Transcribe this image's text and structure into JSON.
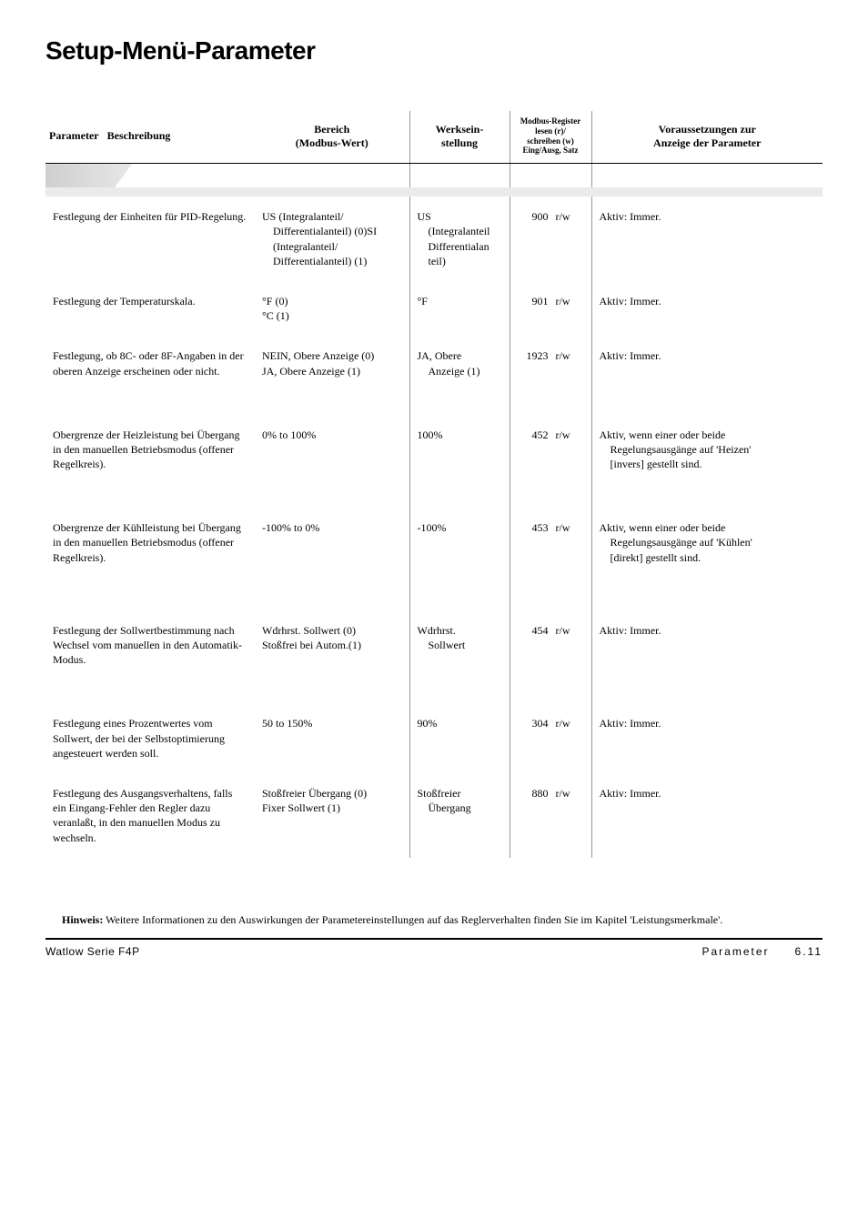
{
  "title": "Setup-Menü-Parameter",
  "columns": {
    "param": "Parameter",
    "desc": "Beschreibung",
    "range": "Bereich",
    "range_sub": "(Modbus-Wert)",
    "default": "Werksein-\nstellung",
    "reg_line1": "Modbus-Register",
    "reg_line2": "lesen (r)/",
    "reg_line3": "schreiben (w)",
    "reg_line4": "Eing/Ausg, Satz",
    "req": "Voraussetzungen zur",
    "req_sub": "Anzeige der Parameter"
  },
  "rows": [
    {
      "desc": "Festlegung der Einheiten für PID-Regelung.",
      "range": "US (Integralanteil/\n Differentialanteil) (0)SI\n (Integralanteil/\n Differentialanteil) (1)",
      "default": "US\n (Integralanteil\n Differentialan\n teil)",
      "reg_num": "900",
      "reg_rw": "r/w",
      "req": "Aktiv: Immer."
    },
    {
      "desc": "Festlegung der Temperaturskala.",
      "range": "°F (0)\n°C (1)",
      "default": "°F",
      "reg_num": "901",
      "reg_rw": "r/w",
      "req": "Aktiv: Immer."
    },
    {
      "desc": "Festlegung, ob 8C- oder 8F-Angaben in der oberen Anzeige erscheinen oder nicht.",
      "range": "NEIN, Obere Anzeige (0)\nJA, Obere Anzeige (1)",
      "default": "JA, Obere\n Anzeige (1)",
      "reg_num": "1923",
      "reg_rw": "r/w",
      "req": "Aktiv: Immer."
    },
    {
      "desc": "Obergrenze der Heizleistung bei Übergang in den manuellen Betriebsmodus (offener Regelkreis).",
      "range": "0% to 100%",
      "default": "100%",
      "reg_num": "452",
      "reg_rw": "r/w",
      "req": "Aktiv, wenn einer oder beide\n Regelungsausgänge auf 'Heizen'\n [invers] gestellt sind."
    },
    {
      "desc": "Obergrenze der Kühlleistung bei Übergang in den manuellen Betriebsmodus (offener Regelkreis).",
      "range": "-100% to 0%",
      "default": "-100%",
      "reg_num": "453",
      "reg_rw": "r/w",
      "req": "Aktiv, wenn einer oder beide\n Regelungsausgänge auf 'Kühlen'\n [direkt] gestellt sind."
    },
    {
      "desc": "Festlegung der Sollwertbestimmung nach Wechsel vom manuellen in den Automatik-Modus.",
      "range": "Wdrhrst. Sollwert (0)\nStoßfrei bei Autom.(1)",
      "default": "Wdrhrst.\n Sollwert",
      "reg_num": "454",
      "reg_rw": "r/w",
      "req": "Aktiv: Immer."
    },
    {
      "desc": "Festlegung eines Prozentwertes vom Sollwert, der bei der Selbstoptimierung angesteuert werden soll.",
      "range": "50 to 150%",
      "default": "90%",
      "reg_num": "304",
      "reg_rw": "r/w",
      "req": "Aktiv: Immer."
    },
    {
      "desc": "Festlegung des Ausgangsverhaltens, falls ein Eingang-Fehler den Regler dazu veranlaßt, in den manuellen Modus zu wechseln.",
      "range": "Stoßfreier Übergang (0)\nFixer Sollwert (1)",
      "default": "Stoßfreier\n Übergang",
      "reg_num": "880",
      "reg_rw": "r/w",
      "req": "Aktiv: Immer."
    }
  ],
  "note_label": "Hinweis:",
  "note_text": " Weitere Informationen zu den Auswirkungen der Parametereinstellungen auf das Reglerverhalten finden Sie im Kapitel 'Leistungsmerkmale'.",
  "footer_left": "Watlow Serie F4P",
  "footer_right": "Parameter  6.11"
}
